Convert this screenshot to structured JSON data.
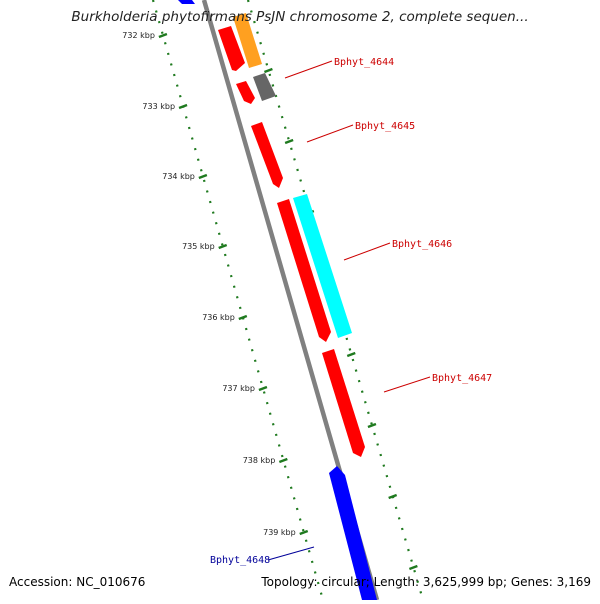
{
  "title": "Burkholderia phytofirmans PsJN chromosome 2, complete sequen...",
  "footer": {
    "accession": "Accession: NC_010676",
    "topology": "Topology: circular; Length: 3,625,999 bp; Genes: 3,169"
  },
  "colors": {
    "backbone": "#808080",
    "tick": "#1f7a1f",
    "label_red": "#cc0000",
    "label_blue": "#000099"
  },
  "ticks": [
    {
      "label": "732 kbp"
    },
    {
      "label": "733 kbp"
    },
    {
      "label": "734 kbp"
    },
    {
      "label": "735 kbp"
    },
    {
      "label": "736 kbp"
    },
    {
      "label": "737 kbp"
    },
    {
      "label": "738 kbp"
    },
    {
      "label": "739 kbp"
    }
  ],
  "gene_labels": [
    {
      "text": "Bphyt_4644",
      "color": "#cc0000"
    },
    {
      "text": "Bphyt_4645",
      "color": "#cc0000"
    },
    {
      "text": "Bphyt_4646",
      "color": "#cc0000"
    },
    {
      "text": "Bphyt_4647",
      "color": "#cc0000"
    },
    {
      "text": "Bphyt_4648",
      "color": "#000099"
    }
  ]
}
